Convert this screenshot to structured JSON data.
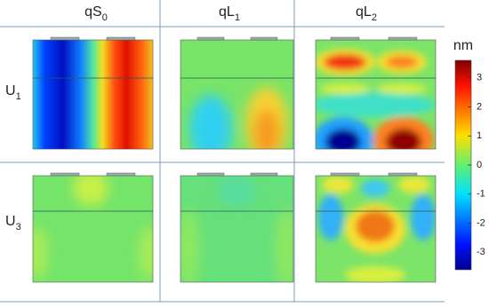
{
  "columns": [
    {
      "main": "qS",
      "sub": "0"
    },
    {
      "main": "qL",
      "sub": "1"
    },
    {
      "main": "qL",
      "sub": "2"
    }
  ],
  "rows": [
    {
      "main": "U",
      "sub": "1"
    },
    {
      "main": "U",
      "sub": "3"
    }
  ],
  "colorbar": {
    "label": "nm",
    "lim": [
      -3.6,
      3.6
    ],
    "ticks": [
      -3,
      -2,
      -1,
      0,
      1,
      2,
      3
    ]
  }
}
